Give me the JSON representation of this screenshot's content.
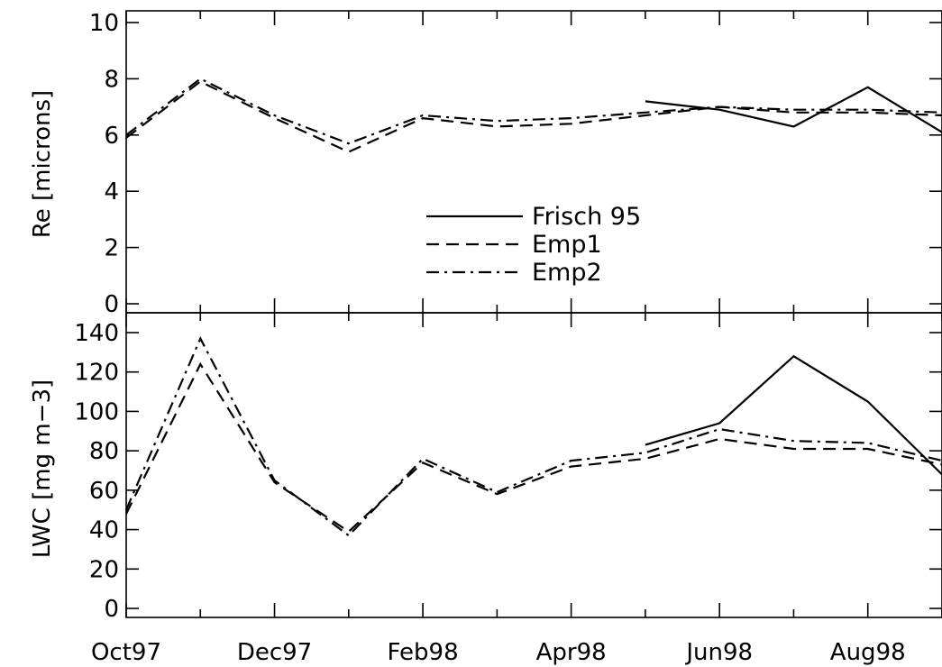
{
  "chart_data": [
    {
      "type": "line",
      "ylabel": "Re [microns]",
      "ylim": [
        0,
        10
      ],
      "yticks": [
        0,
        2,
        4,
        6,
        8,
        10
      ],
      "xlim": [
        "1997-10",
        "1998-09"
      ],
      "x": [
        "1997-10",
        "1997-11",
        "1997-12",
        "1998-01",
        "1998-02",
        "1998-03",
        "1998-04",
        "1998-05",
        "1998-06",
        "1998-07",
        "1998-08",
        "1998-09"
      ],
      "legend_position": "center",
      "series": [
        {
          "name": "Frisch 95",
          "style": "solid",
          "values": [
            null,
            null,
            null,
            null,
            null,
            null,
            null,
            7.2,
            6.9,
            6.3,
            7.7,
            6.1
          ]
        },
        {
          "name": "Emp1",
          "style": "dashed",
          "values": [
            5.9,
            7.9,
            6.6,
            5.4,
            6.6,
            6.3,
            6.4,
            6.7,
            7.0,
            6.8,
            6.8,
            6.7
          ]
        },
        {
          "name": "Emp2",
          "style": "dashdot",
          "values": [
            6.0,
            8.0,
            6.7,
            5.7,
            6.7,
            6.5,
            6.6,
            6.8,
            7.0,
            6.9,
            6.9,
            6.8
          ]
        }
      ]
    },
    {
      "type": "line",
      "ylabel": "LWC [mg m−3]",
      "ylim": [
        0,
        145
      ],
      "yticks": [
        0,
        20,
        40,
        60,
        80,
        100,
        120,
        140
      ],
      "xlim": [
        "1997-10",
        "1998-09"
      ],
      "x": [
        "1997-10",
        "1997-11",
        "1997-12",
        "1998-01",
        "1998-02",
        "1998-03",
        "1998-04",
        "1998-05",
        "1998-06",
        "1998-07",
        "1998-08",
        "1998-09"
      ],
      "xticks": [
        {
          "x": "1997-10",
          "label": "Oct97"
        },
        {
          "x": "1997-12",
          "label": "Dec97"
        },
        {
          "x": "1998-02",
          "label": "Feb98"
        },
        {
          "x": "1998-04",
          "label": "Apr98"
        },
        {
          "x": "1998-06",
          "label": "Jun98"
        },
        {
          "x": "1998-08",
          "label": "Aug98"
        }
      ],
      "series": [
        {
          "name": "Frisch 95",
          "style": "solid",
          "values": [
            null,
            null,
            null,
            null,
            null,
            null,
            null,
            83,
            94,
            128,
            105,
            68
          ]
        },
        {
          "name": "Emp1",
          "style": "dashed",
          "values": [
            48,
            124,
            64,
            39,
            74,
            58,
            72,
            76,
            86,
            81,
            81,
            73
          ]
        },
        {
          "name": "Emp2",
          "style": "dashdot",
          "values": [
            50,
            137,
            65,
            37,
            76,
            59,
            75,
            79,
            91,
            85,
            84,
            75
          ]
        }
      ]
    }
  ]
}
